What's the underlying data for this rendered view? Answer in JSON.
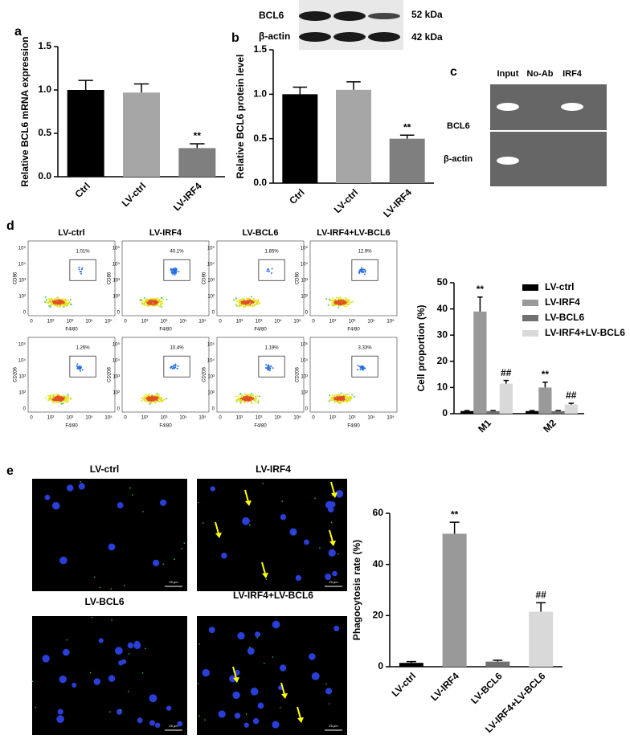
{
  "panel_labels": [
    "a",
    "b",
    "c",
    "d",
    "e"
  ],
  "western_blot": {
    "rows": [
      "BCL6",
      "β-actin"
    ],
    "sizes": [
      "52 kDa",
      "42 kDa"
    ]
  },
  "chip": {
    "lanes": [
      "Input",
      "No-Ab",
      "IRF4"
    ],
    "rows": [
      "BCL6",
      "β-actin"
    ]
  },
  "flow": {
    "titles": [
      "LV-ctrl",
      "LV-IRF4",
      "LV-BCL6",
      "LV-IRF4+LV-BCL6"
    ],
    "row1_gates": [
      "1.01%",
      "40.1%",
      "1.85%",
      "12.9%"
    ],
    "row2_gates": [
      "1.26%",
      "10.4%",
      "1.19%",
      "3.33%"
    ],
    "y_labels": [
      "CD86",
      "CD206"
    ],
    "x_label": "F4/80",
    "ticks": [
      "0",
      "10²",
      "10³",
      "10⁴",
      "10⁵"
    ]
  },
  "microscopy": {
    "titles": [
      "LV-ctrl",
      "LV-IRF4",
      "LV-BCL6",
      "LV-IRF4+LV-BCL6"
    ],
    "scale": "25 μm"
  },
  "chart_data": [
    {
      "type": "bar",
      "y_label": "Relative BCL6 mRNA expression",
      "categories": [
        "Ctrl",
        "LV-ctrl",
        "LV-IRF4"
      ],
      "values": [
        1.0,
        0.97,
        0.33
      ],
      "errors": [
        0.11,
        0.1,
        0.05
      ],
      "colors": [
        "#000000",
        "#a6a6a6",
        "#7f7f7f"
      ],
      "annotations": [
        {
          "index": 2,
          "text": "**"
        }
      ],
      "ylim": [
        0,
        1.5
      ],
      "yticks": [
        {
          "value": 0,
          "label": "0.0"
        },
        {
          "value": 0.5,
          "label": "0.5"
        },
        {
          "value": 1,
          "label": "1.0"
        },
        {
          "value": 1.5,
          "label": "1.5"
        }
      ]
    },
    {
      "type": "bar",
      "y_label": "Relative BCL6 protein level",
      "categories": [
        "Ctrl",
        "LV-ctrl",
        "LV-IRF4"
      ],
      "values": [
        1.0,
        1.05,
        0.5
      ],
      "errors": [
        0.08,
        0.09,
        0.04
      ],
      "colors": [
        "#000000",
        "#a6a6a6",
        "#7f7f7f"
      ],
      "annotations": [
        {
          "index": 2,
          "text": "**"
        }
      ],
      "ylim": [
        0,
        1.5
      ],
      "yticks": [
        {
          "value": 0,
          "label": "0.0"
        },
        {
          "value": 0.5,
          "label": "0.5"
        },
        {
          "value": 1,
          "label": "1.0"
        },
        {
          "value": 1.5,
          "label": "1.5"
        }
      ]
    },
    {
      "type": "bar",
      "y_label": "Cell proportion (%)",
      "categories": [
        "M1",
        "M2"
      ],
      "series": [
        {
          "name": "LV-ctrl",
          "color": "#000000",
          "values": [
            1,
            1
          ],
          "errors": [
            0.2,
            0.2
          ]
        },
        {
          "name": "LV-IRF4",
          "color": "#999999",
          "values": [
            39,
            10
          ],
          "errors": [
            5.5,
            2
          ],
          "annotations": [
            {
              "index": 0,
              "text": "**"
            },
            {
              "index": 1,
              "text": "**"
            }
          ]
        },
        {
          "name": "LV-BCL6",
          "color": "#707070",
          "values": [
            1,
            1
          ],
          "errors": [
            0.2,
            0.2
          ]
        },
        {
          "name": "LV-IRF4+LV-BCL6",
          "color": "#d9d9d9",
          "values": [
            11.5,
            3.5
          ],
          "errors": [
            1.2,
            0.5
          ],
          "annotations": [
            {
              "index": 0,
              "text": "##"
            },
            {
              "index": 1,
              "text": "##"
            }
          ]
        }
      ],
      "ylim": [
        0,
        50
      ],
      "yticks": [
        0,
        10,
        20,
        30,
        40,
        50
      ]
    },
    {
      "type": "bar",
      "y_label": "Phagocytosis rate (%)",
      "categories": [
        "LV-ctrl",
        "LV-IRF4",
        "LV-BCL6",
        "LV-IRF4+LV-BCL6"
      ],
      "values": [
        1.5,
        52,
        2,
        21.5
      ],
      "errors": [
        0.5,
        4.5,
        0.5,
        3.5
      ],
      "colors": [
        "#000000",
        "#999999",
        "#707070",
        "#d9d9d9"
      ],
      "annotations": [
        {
          "index": 1,
          "text": "**"
        },
        {
          "index": 3,
          "text": "##"
        }
      ],
      "ylim": [
        0,
        60
      ],
      "yticks": [
        0,
        20,
        40,
        60
      ]
    }
  ]
}
